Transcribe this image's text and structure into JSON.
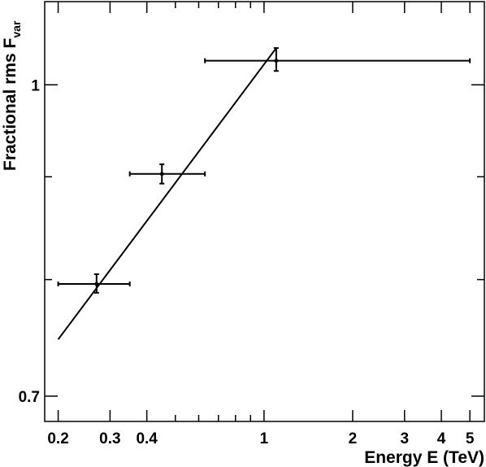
{
  "chart_data": {
    "type": "scatter",
    "xlabel": "Energy E (TeV)",
    "ylabel": "Fractional rms F",
    "ylabel_sub": "var",
    "x_scale": "log",
    "y_scale": "log",
    "xlim": [
      0.18,
      5.6
    ],
    "ylim": [
      0.68,
      1.1
    ],
    "x_ticks": [
      {
        "value": 0.2,
        "label": "0.2"
      },
      {
        "value": 0.3,
        "label": "0.3"
      },
      {
        "value": 0.4,
        "label": "0.4"
      },
      {
        "value": 1,
        "label": "1"
      },
      {
        "value": 2,
        "label": "2"
      },
      {
        "value": 3,
        "label": "3"
      },
      {
        "value": 4,
        "label": "4"
      },
      {
        "value": 5,
        "label": "5"
      }
    ],
    "x_minor_ticks": [
      0.5,
      0.6,
      0.7,
      0.8,
      0.9
    ],
    "y_ticks": [
      {
        "value": 1,
        "label": "1"
      },
      {
        "value": 0.7,
        "label": "0.7"
      }
    ],
    "y_minor_ticks": [
      0.9,
      0.8
    ],
    "grid": false,
    "points": [
      {
        "x": 0.27,
        "y": 0.796,
        "xerr": [
          0.2,
          0.35
        ],
        "yerr": [
          0.788,
          0.805
        ]
      },
      {
        "x": 0.45,
        "y": 0.903,
        "xerr": [
          0.35,
          0.63
        ],
        "yerr": [
          0.893,
          0.913
        ]
      },
      {
        "x": 1.1,
        "y": 1.028,
        "xerr": [
          0.63,
          5.0
        ],
        "yerr": [
          1.016,
          1.043
        ]
      }
    ],
    "fit_line": {
      "x": [
        0.2,
        1.1
      ],
      "y": [
        0.747,
        1.043
      ]
    }
  }
}
